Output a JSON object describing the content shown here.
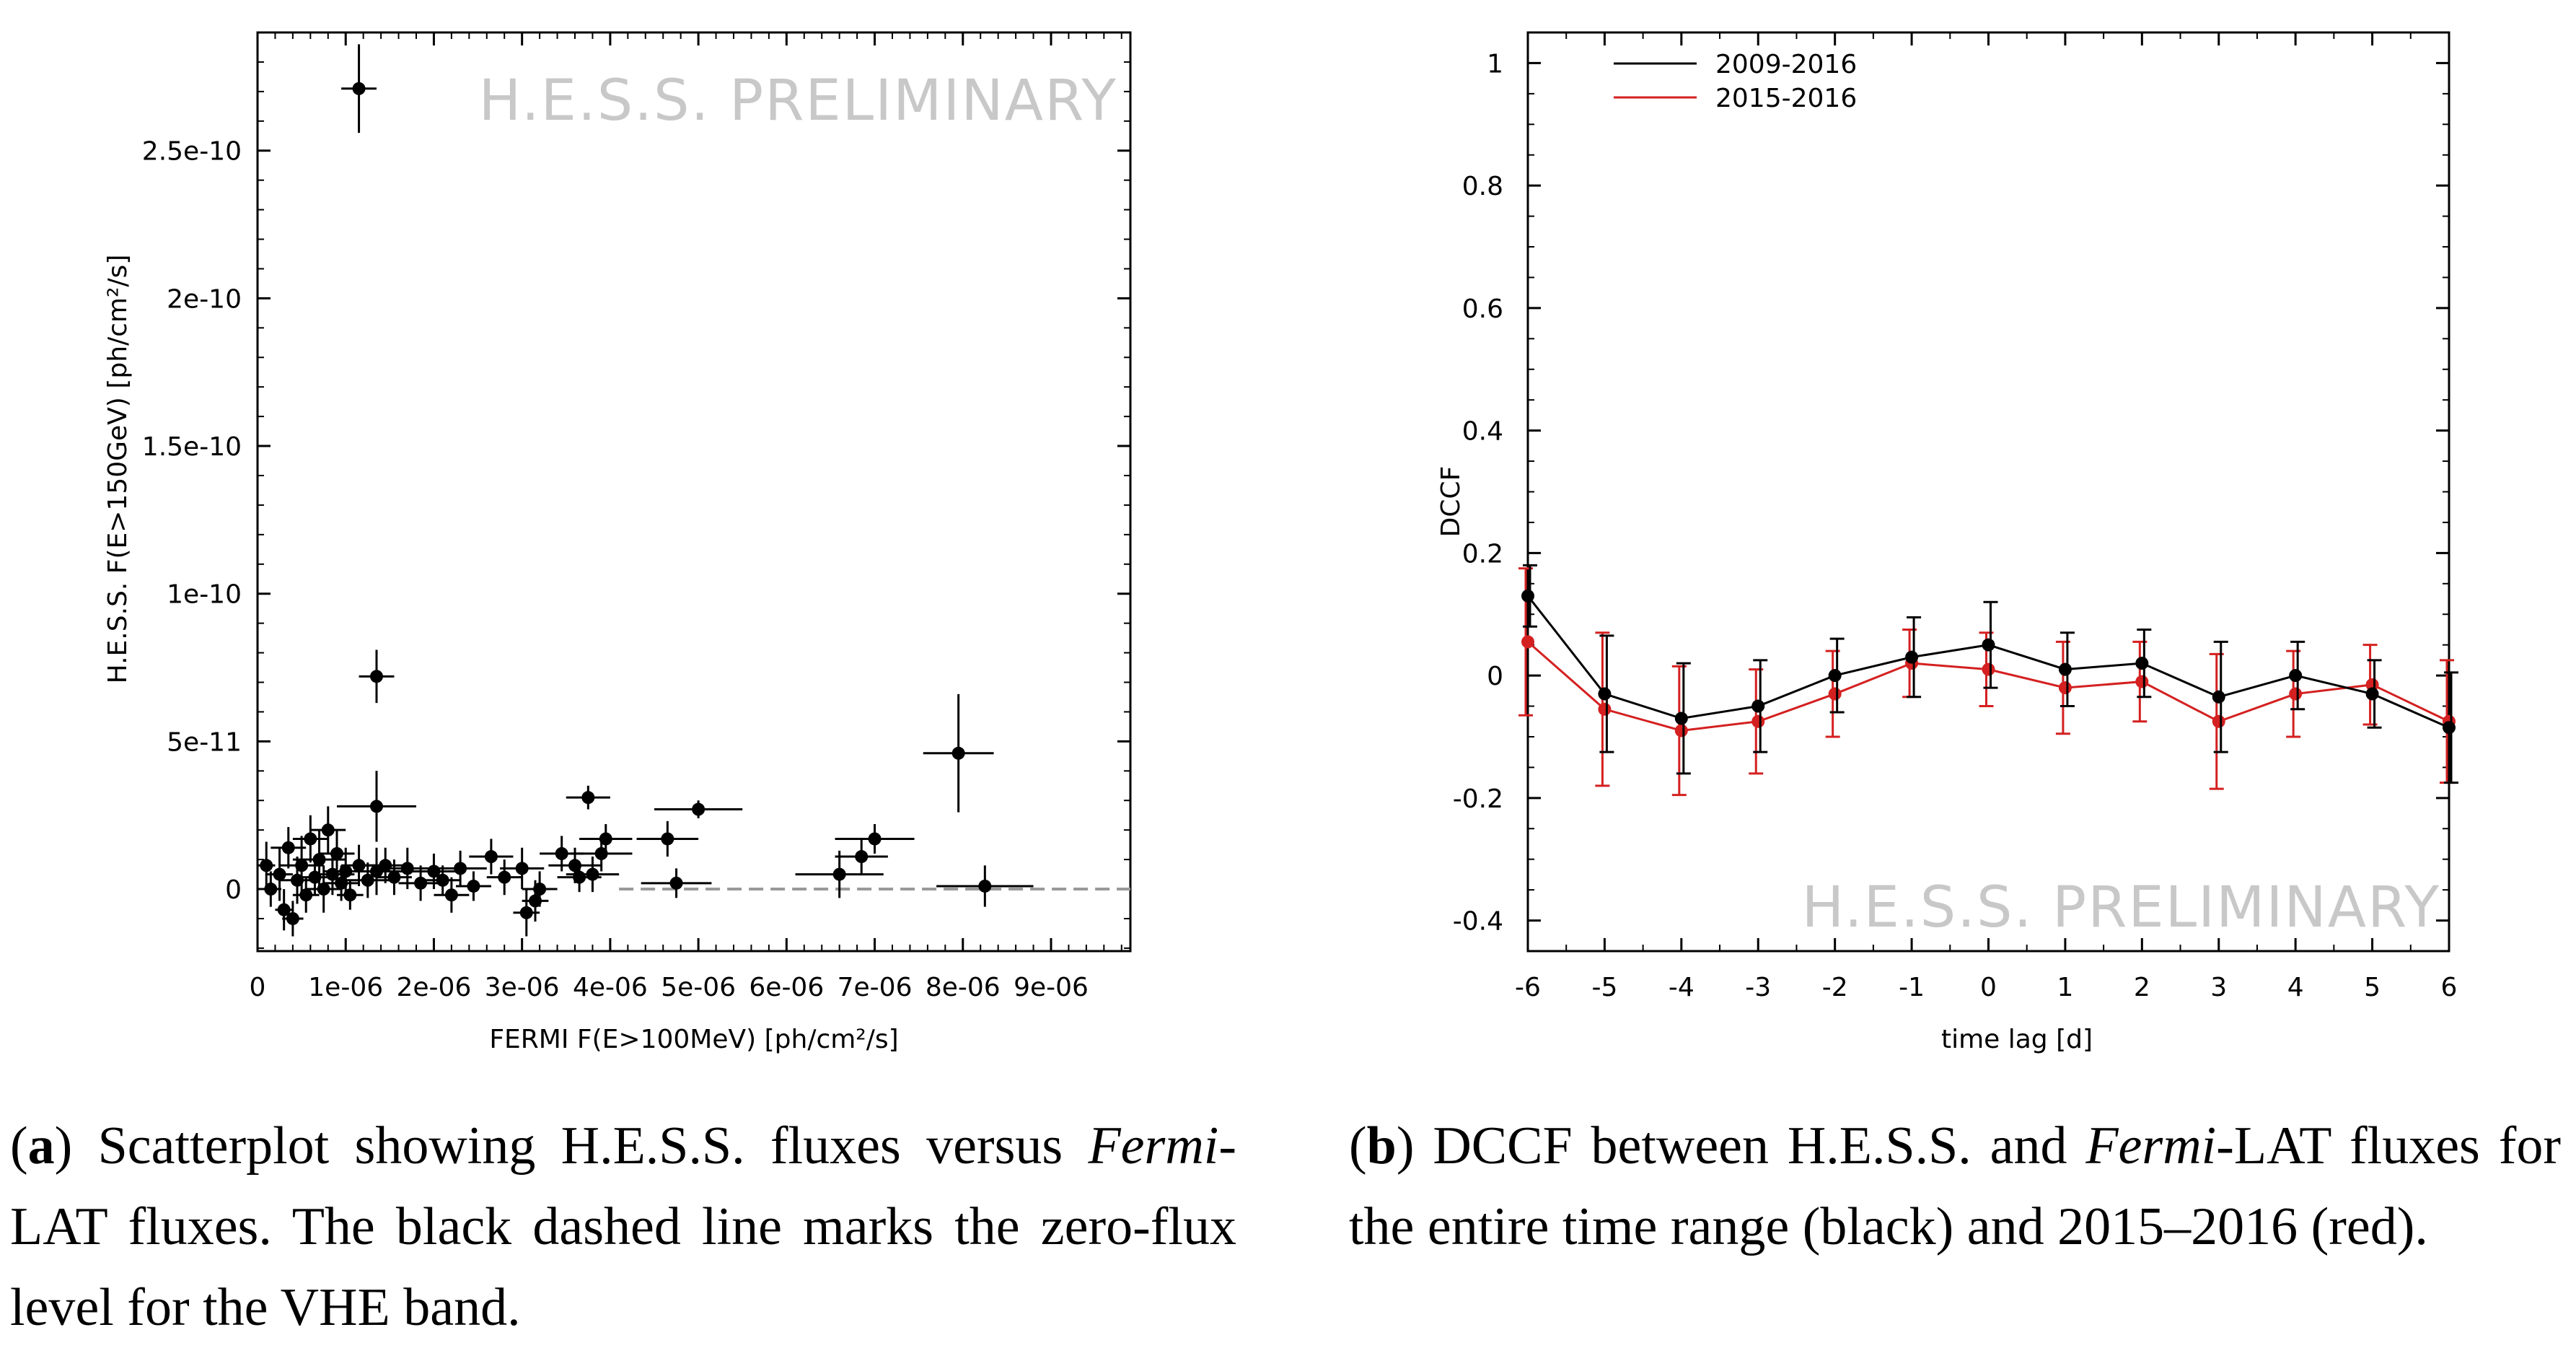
{
  "chart_data": [
    {
      "type": "scatter",
      "panel": "a",
      "watermark": "H.E.S.S. PRELIMINARY",
      "xlabel": "FERMI F(E>100MeV) [ph/cm²/s]",
      "ylabel": "H.E.S.S. F(E>150GeV) [ph/cm²/s]",
      "xlim": [
        0,
        9.9e-06
      ],
      "ylim": [
        -2.1e-11,
        2.9e-10
      ],
      "xticks": [
        0,
        1e-06,
        2e-06,
        3e-06,
        4e-06,
        5e-06,
        6e-06,
        7e-06,
        8e-06,
        9e-06
      ],
      "xtick_labels": [
        "0",
        "1e-06",
        "2e-06",
        "3e-06",
        "4e-06",
        "5e-06",
        "6e-06",
        "7e-06",
        "8e-06",
        "9e-06"
      ],
      "yticks": [
        0,
        5e-11,
        1e-10,
        1.5e-10,
        2e-10,
        2.5e-10
      ],
      "ytick_labels": [
        "0",
        "5e-11",
        "1e-10",
        "1.5e-10",
        "2e-10",
        "2.5e-10"
      ],
      "zero_line": {
        "y": 0,
        "x_from": 4.1e-06,
        "x_to": 9.9e-06,
        "style": "dashed",
        "color": "#999999"
      },
      "points": [
        {
          "x": 1.15e-06,
          "y": 2.71e-10,
          "xerr": 2e-07,
          "yerr": 1.5e-11
        },
        {
          "x": 1.35e-06,
          "y": 7.2e-11,
          "xerr": 2e-07,
          "yerr": 9e-12
        },
        {
          "x": 1.35e-06,
          "y": 2.8e-11,
          "xerr": 4.5e-07,
          "yerr": 1.2e-11
        },
        {
          "x": 1e-07,
          "y": 8e-12,
          "xerr": 1e-07,
          "yerr": 8e-12
        },
        {
          "x": 1.5e-07,
          "y": 0,
          "xerr": 1.2e-07,
          "yerr": 6e-12
        },
        {
          "x": 2.5e-07,
          "y": 5e-12,
          "xerr": 1.5e-07,
          "yerr": 9e-12
        },
        {
          "x": 3e-07,
          "y": -7e-12,
          "xerr": 1e-07,
          "yerr": 7e-12
        },
        {
          "x": 3.5e-07,
          "y": 1.4e-11,
          "xerr": 2e-07,
          "yerr": 7e-12
        },
        {
          "x": 4e-07,
          "y": -1e-11,
          "xerr": 1.2e-07,
          "yerr": 6e-12
        },
        {
          "x": 4.5e-07,
          "y": 3e-12,
          "xerr": 2e-07,
          "yerr": 8e-12
        },
        {
          "x": 5e-07,
          "y": 8e-12,
          "xerr": 2.5e-07,
          "yerr": 1e-11
        },
        {
          "x": 5.5e-07,
          "y": -2e-12,
          "xerr": 1.5e-07,
          "yerr": 6e-12
        },
        {
          "x": 6e-07,
          "y": 1.7e-11,
          "xerr": 2e-07,
          "yerr": 8e-12
        },
        {
          "x": 6.5e-07,
          "y": 4e-12,
          "xerr": 2e-07,
          "yerr": 6e-12
        },
        {
          "x": 7e-07,
          "y": 1e-11,
          "xerr": 3e-07,
          "yerr": 1e-11
        },
        {
          "x": 7.5e-07,
          "y": 0,
          "xerr": 2e-07,
          "yerr": 8e-12
        },
        {
          "x": 8e-07,
          "y": 2e-11,
          "xerr": 2e-07,
          "yerr": 8e-12
        },
        {
          "x": 8.5e-07,
          "y": 5e-12,
          "xerr": 2.5e-07,
          "yerr": 7e-12
        },
        {
          "x": 9e-07,
          "y": 1.2e-11,
          "xerr": 2e-07,
          "yerr": 8e-12
        },
        {
          "x": 9.5e-07,
          "y": 2e-12,
          "xerr": 2e-07,
          "yerr": 6e-12
        },
        {
          "x": 1e-06,
          "y": 6e-12,
          "xerr": 2.5e-07,
          "yerr": 8e-12
        },
        {
          "x": 1.05e-06,
          "y": -2e-12,
          "xerr": 1.5e-07,
          "yerr": 5e-12
        },
        {
          "x": 1.15e-06,
          "y": 8e-12,
          "xerr": 2e-07,
          "yerr": 7e-12
        },
        {
          "x": 1.25e-06,
          "y": 3e-12,
          "xerr": 2.5e-07,
          "yerr": 6e-12
        },
        {
          "x": 1.35e-06,
          "y": 6e-12,
          "xerr": 3e-07,
          "yerr": 8e-12
        },
        {
          "x": 1.45e-06,
          "y": 8e-12,
          "xerr": 2.5e-07,
          "yerr": 6e-12
        },
        {
          "x": 1.55e-06,
          "y": 4e-12,
          "xerr": 2e-07,
          "yerr": 6e-12
        },
        {
          "x": 1.7e-06,
          "y": 7e-12,
          "xerr": 3e-07,
          "yerr": 7e-12
        },
        {
          "x": 1.85e-06,
          "y": 2e-12,
          "xerr": 2.5e-07,
          "yerr": 6e-12
        },
        {
          "x": 2e-06,
          "y": 6e-12,
          "xerr": 3e-07,
          "yerr": 6e-12
        },
        {
          "x": 2.1e-06,
          "y": 3e-12,
          "xerr": 2e-07,
          "yerr": 5e-12
        },
        {
          "x": 2.2e-06,
          "y": -2e-12,
          "xerr": 2e-07,
          "yerr": 6e-12
        },
        {
          "x": 2.3e-06,
          "y": 7e-12,
          "xerr": 3e-07,
          "yerr": 6e-12
        },
        {
          "x": 2.45e-06,
          "y": 1e-12,
          "xerr": 2e-07,
          "yerr": 5e-12
        },
        {
          "x": 2.65e-06,
          "y": 1.1e-11,
          "xerr": 2.5e-07,
          "yerr": 6e-12
        },
        {
          "x": 2.8e-06,
          "y": 4e-12,
          "xerr": 2e-07,
          "yerr": 6e-12
        },
        {
          "x": 3e-06,
          "y": 7e-12,
          "xerr": 2.5e-07,
          "yerr": 7e-12
        },
        {
          "x": 3.05e-06,
          "y": -8e-12,
          "xerr": 1.5e-07,
          "yerr": 8e-12
        },
        {
          "x": 3.15e-06,
          "y": -4e-12,
          "xerr": 1.5e-07,
          "yerr": 7e-12
        },
        {
          "x": 3.2e-06,
          "y": 0,
          "xerr": 2e-07,
          "yerr": 6e-12
        },
        {
          "x": 3.45e-06,
          "y": 1.2e-11,
          "xerr": 2.5e-07,
          "yerr": 6e-12
        },
        {
          "x": 3.6e-06,
          "y": 8e-12,
          "xerr": 3e-07,
          "yerr": 6e-12
        },
        {
          "x": 3.65e-06,
          "y": 4e-12,
          "xerr": 2.5e-07,
          "yerr": 5e-12
        },
        {
          "x": 3.75e-06,
          "y": 3.1e-11,
          "xerr": 2.5e-07,
          "yerr": 4e-12
        },
        {
          "x": 3.8e-06,
          "y": 5e-12,
          "xerr": 3e-07,
          "yerr": 6e-12
        },
        {
          "x": 3.9e-06,
          "y": 1.2e-11,
          "xerr": 3.5e-07,
          "yerr": 6e-12
        },
        {
          "x": 3.95e-06,
          "y": 1.7e-11,
          "xerr": 3e-07,
          "yerr": 5e-12
        },
        {
          "x": 4.65e-06,
          "y": 1.7e-11,
          "xerr": 3.5e-07,
          "yerr": 6e-12
        },
        {
          "x": 4.75e-06,
          "y": 2e-12,
          "xerr": 4e-07,
          "yerr": 5e-12
        },
        {
          "x": 5e-06,
          "y": 2.7e-11,
          "xerr": 5e-07,
          "yerr": 3e-12
        },
        {
          "x": 6.6e-06,
          "y": 5e-12,
          "xerr": 5e-07,
          "yerr": 8e-12
        },
        {
          "x": 6.85e-06,
          "y": 1.1e-11,
          "xerr": 3e-07,
          "yerr": 6e-12
        },
        {
          "x": 7e-06,
          "y": 1.7e-11,
          "xerr": 4.5e-07,
          "yerr": 5e-12
        },
        {
          "x": 7.95e-06,
          "y": 4.6e-11,
          "xerr": 4e-07,
          "yerr": 2e-11
        },
        {
          "x": 8.25e-06,
          "y": 1e-12,
          "xerr": 5.5e-07,
          "yerr": 7e-12
        }
      ]
    },
    {
      "type": "line",
      "panel": "b",
      "watermark": "H.E.S.S. PRELIMINARY",
      "xlabel": "time lag [d]",
      "ylabel": "DCCF",
      "xlim": [
        -6,
        6
      ],
      "ylim": [
        -0.45,
        1.05
      ],
      "xticks": [
        -6,
        -5,
        -4,
        -3,
        -2,
        -1,
        0,
        1,
        2,
        3,
        4,
        5,
        6
      ],
      "xtick_labels": [
        "-6",
        "-5",
        "-4",
        "-3",
        "-2",
        "-1",
        "0",
        "1",
        "2",
        "3",
        "4",
        "5",
        "6"
      ],
      "yticks": [
        -0.4,
        -0.2,
        0,
        0.2,
        0.4,
        0.6,
        0.8,
        1
      ],
      "ytick_labels": [
        "-0.4",
        "-0.2",
        "0",
        "0.2",
        "0.4",
        "0.6",
        "0.8",
        "1"
      ],
      "legend_position": "top-left",
      "series": [
        {
          "name": "2009-2016",
          "color": "#000000",
          "x": [
            -6,
            -5,
            -4,
            -3,
            -2,
            -1,
            0,
            1,
            2,
            3,
            4,
            5,
            6
          ],
          "values": [
            0.13,
            -0.03,
            -0.07,
            -0.05,
            0.0,
            0.03,
            0.05,
            0.01,
            0.02,
            -0.035,
            0.0,
            -0.03,
            -0.085
          ],
          "errors": [
            0.05,
            0.095,
            0.09,
            0.075,
            0.06,
            0.065,
            0.07,
            0.06,
            0.055,
            0.09,
            0.055,
            0.055,
            0.09
          ]
        },
        {
          "name": "2015-2016",
          "color": "#d42020",
          "x": [
            -6,
            -5,
            -4,
            -3,
            -2,
            -1,
            0,
            1,
            2,
            3,
            4,
            5,
            6
          ],
          "values": [
            0.055,
            -0.055,
            -0.09,
            -0.075,
            -0.03,
            0.02,
            0.01,
            -0.02,
            -0.01,
            -0.075,
            -0.03,
            -0.015,
            -0.075
          ],
          "errors": [
            0.12,
            0.125,
            0.105,
            0.085,
            0.07,
            0.055,
            0.06,
            0.075,
            0.065,
            0.11,
            0.07,
            0.065,
            0.1
          ]
        }
      ]
    }
  ],
  "captions": {
    "a": {
      "tag": "a",
      "pre": " Scatterplot showing H.E.S.S. fluxes versus ",
      "italic": "Fermi",
      "post": "-LAT fluxes.  The black dashed line marks the zero-flux level for the VHE band."
    },
    "b": {
      "tag": "b",
      "pre": " DCCF between H.E.S.S. and ",
      "italic": "Fermi",
      "post": "-LAT fluxes for the entire time range (black) and 2015–2016 (red)."
    }
  }
}
